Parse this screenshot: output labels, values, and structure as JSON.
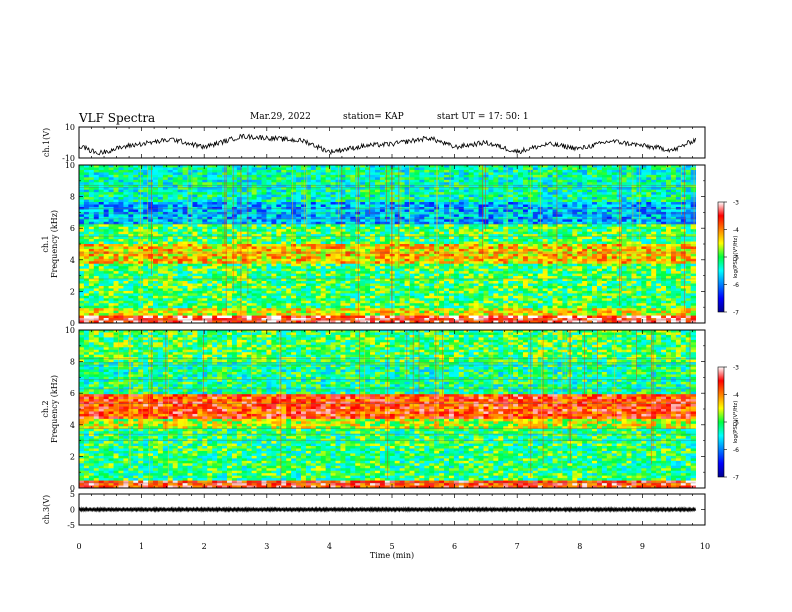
{
  "header": {
    "title": "VLF Spectra",
    "date": "Mar.29, 2022",
    "station": "station= KAP",
    "start": "start  UT  =   17: 50: 1"
  },
  "chart_data": [
    {
      "type": "line",
      "name": "ch1-waveform",
      "ylabel": "ch.1(V)",
      "ylim": [
        -10,
        10
      ],
      "yticks": [
        10,
        -10
      ],
      "xlim": [
        0,
        10
      ],
      "x_unit": "min",
      "data_end_min": 9.85,
      "description_points": [
        {
          "x": 0,
          "y": -2
        },
        {
          "x": 0.3,
          "y": -7
        },
        {
          "x": 0.8,
          "y": -2
        },
        {
          "x": 1.5,
          "y": 2
        },
        {
          "x": 2.0,
          "y": -3
        },
        {
          "x": 2.6,
          "y": 4
        },
        {
          "x": 3.0,
          "y": 3
        },
        {
          "x": 3.6,
          "y": 1
        },
        {
          "x": 4.0,
          "y": -6
        },
        {
          "x": 4.6,
          "y": -2
        },
        {
          "x": 5.0,
          "y": -1
        },
        {
          "x": 5.6,
          "y": 3
        },
        {
          "x": 6.0,
          "y": -3
        },
        {
          "x": 6.5,
          "y": 0
        },
        {
          "x": 7.0,
          "y": -6
        },
        {
          "x": 7.5,
          "y": -1
        },
        {
          "x": 8.0,
          "y": -4
        },
        {
          "x": 8.5,
          "y": 1
        },
        {
          "x": 9.0,
          "y": -2
        },
        {
          "x": 9.5,
          "y": -5
        },
        {
          "x": 9.85,
          "y": 2
        }
      ]
    },
    {
      "type": "heatmap",
      "name": "ch1-spectrogram",
      "ylabel_line1": "ch.1",
      "ylabel_line2": "Frequency  (kHz)",
      "ylim": [
        0,
        10
      ],
      "yticks": [
        0,
        2,
        4,
        6,
        8,
        10
      ],
      "xlim": [
        0,
        10
      ],
      "data_end_min": 9.85,
      "bands_khz": [
        {
          "from": 0,
          "to": 0.4,
          "level": -3.4
        },
        {
          "from": 0.4,
          "to": 1.0,
          "level": -4.5
        },
        {
          "from": 1.0,
          "to": 3.8,
          "level": -5.0
        },
        {
          "from": 3.8,
          "to": 5.0,
          "level": -4.3
        },
        {
          "from": 5.0,
          "to": 6.2,
          "level": -5.0
        },
        {
          "from": 6.2,
          "to": 7.6,
          "level": -5.8
        },
        {
          "from": 7.6,
          "to": 10.0,
          "level": -5.3
        }
      ],
      "colorbar": {
        "label": "log(PSD)(V²/Hz)",
        "range": [
          -7,
          -3
        ],
        "ticks": [
          -3,
          -4,
          -5,
          -6,
          -7
        ]
      }
    },
    {
      "type": "heatmap",
      "name": "ch2-spectrogram",
      "ylabel_line1": "ch.2",
      "ylabel_line2": "Frequency  (kHz)",
      "ylim": [
        0,
        10
      ],
      "yticks": [
        0,
        2,
        4,
        6,
        8,
        10
      ],
      "xlim": [
        0,
        10
      ],
      "data_end_min": 9.85,
      "bands_khz": [
        {
          "from": 0,
          "to": 0.4,
          "level": -3.6
        },
        {
          "from": 0.4,
          "to": 3.8,
          "level": -5.1
        },
        {
          "from": 3.8,
          "to": 4.4,
          "level": -4.6
        },
        {
          "from": 4.4,
          "to": 6.0,
          "level": -3.7
        },
        {
          "from": 6.0,
          "to": 8.0,
          "level": -5.2
        },
        {
          "from": 8.0,
          "to": 10.0,
          "level": -5.0
        }
      ],
      "colorbar": {
        "label": "log(PSD)(V²/Hz)",
        "range": [
          -7,
          -3
        ],
        "ticks": [
          -3,
          -4,
          -5,
          -6,
          -7
        ]
      }
    },
    {
      "type": "line",
      "name": "ch3-waveform",
      "ylabel": "ch.3(V)",
      "ylim": [
        -5,
        5
      ],
      "yticks": [
        5,
        0,
        -5
      ],
      "xlim": [
        0,
        10
      ],
      "data_end_min": 9.85,
      "level": 0,
      "noise_amplitude": 0.4
    }
  ],
  "xaxis": {
    "label": "Time  (min)",
    "ticks": [
      0,
      1,
      2,
      3,
      4,
      5,
      6,
      7,
      8,
      9,
      10
    ]
  }
}
